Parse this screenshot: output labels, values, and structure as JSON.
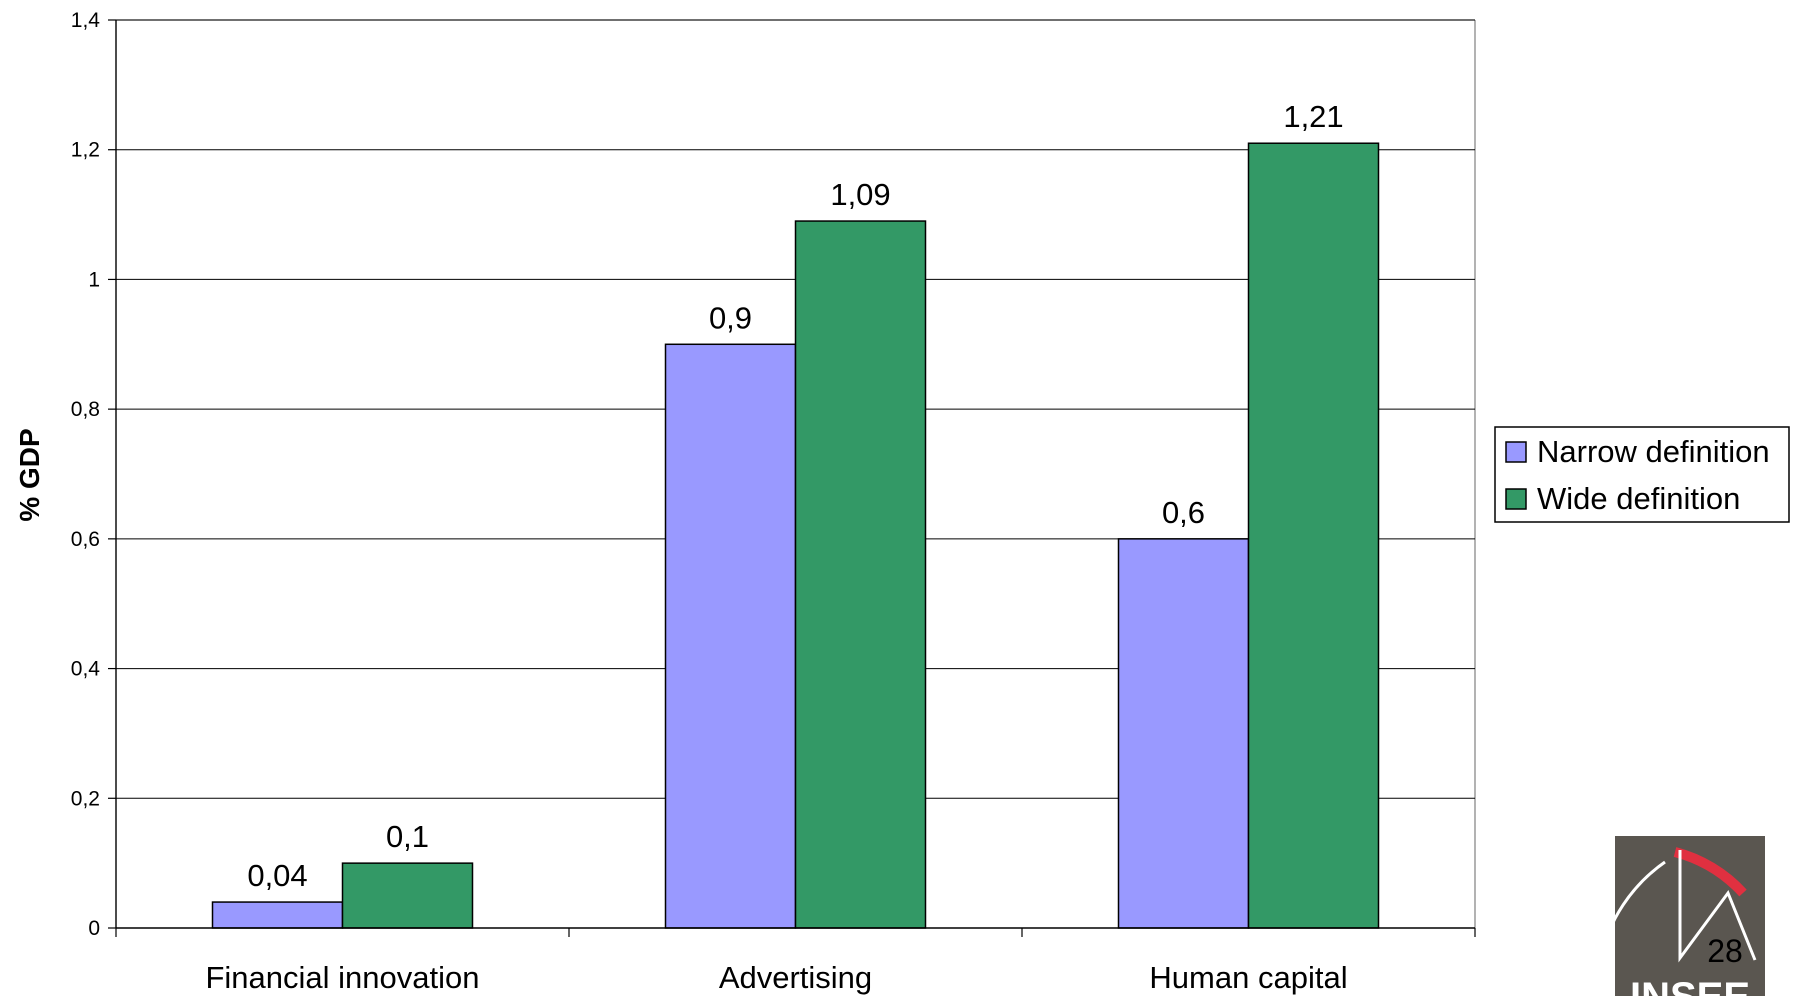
{
  "chart_data": {
    "type": "bar",
    "categories": [
      "Financial innovation",
      "Advertising",
      "Human capital"
    ],
    "series": [
      {
        "name": "Narrow definition",
        "values": [
          0.04,
          0.9,
          0.6
        ],
        "labels": [
          "0,04",
          "0,9",
          "0,6"
        ],
        "color": "#9999FF"
      },
      {
        "name": "Wide definition",
        "values": [
          0.1,
          1.09,
          1.21
        ],
        "labels": [
          "0,1",
          "1,09",
          "1,21"
        ],
        "color": "#339966"
      }
    ],
    "title": "",
    "xlabel": "",
    "ylabel": "% GDP",
    "ylim": [
      0,
      1.4
    ],
    "yticks": [
      0,
      0.2,
      0.4,
      0.6,
      0.8,
      1,
      1.2,
      1.4
    ],
    "ytick_labels": [
      "0",
      "0,2",
      "0,4",
      "0,6",
      "0,8",
      "1",
      "1,2",
      "1,4"
    ],
    "grid": "horizontal",
    "legend": "right"
  },
  "page_number": "28",
  "logo": {
    "text": "INSEE"
  }
}
